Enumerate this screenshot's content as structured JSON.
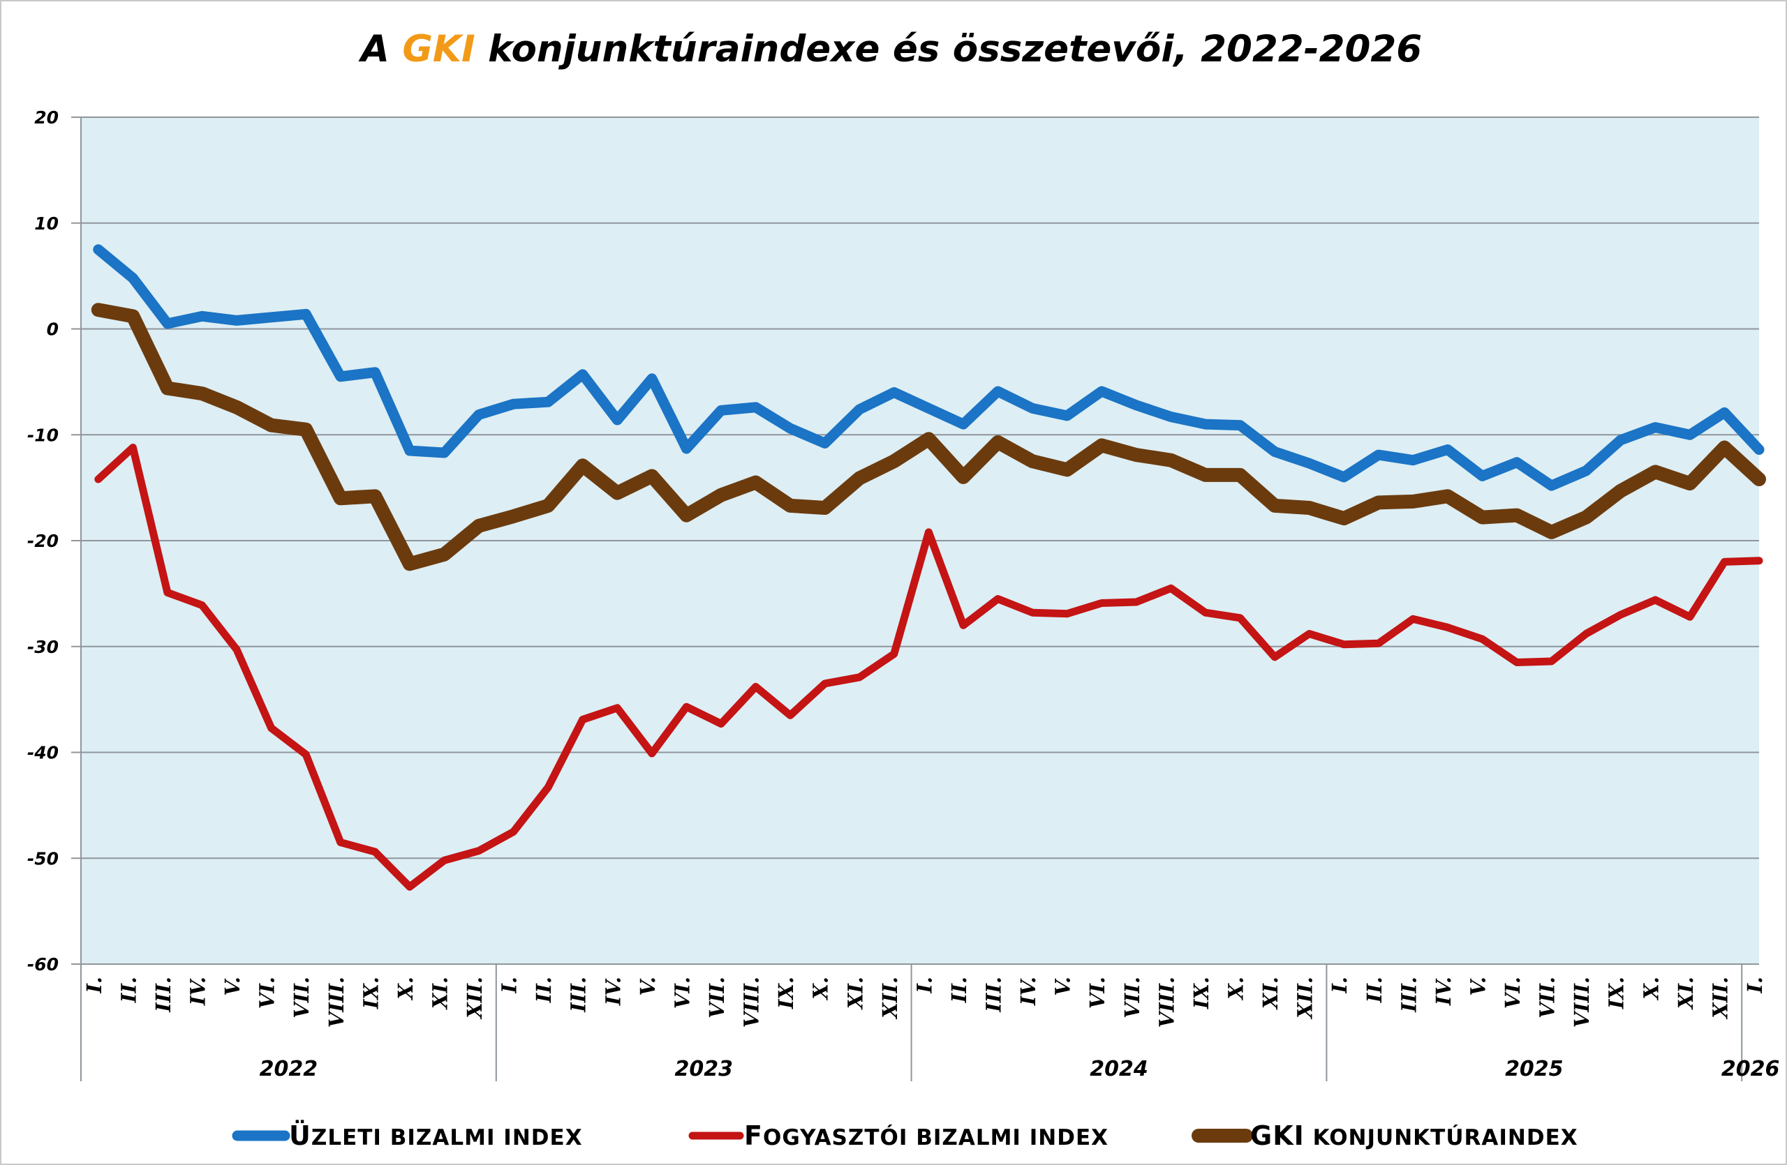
{
  "chart_data": {
    "type": "line",
    "title": {
      "prefix": "A ",
      "highlight": "GKI",
      "suffix": " konjunktúraindexe és összetevői, 2022-2026",
      "highlight_color": "#F29A17"
    },
    "ylim": [
      -60,
      20
    ],
    "yticks": [
      "20",
      "10",
      "0",
      "-10",
      "-20",
      "-30",
      "-40",
      "-50",
      "-60"
    ],
    "yticks_values": [
      20,
      10,
      0,
      -10,
      -20,
      -30,
      -40,
      -50,
      -60
    ],
    "grid": true,
    "plot_background": "#DDEEF4",
    "legend_position": "bottom",
    "months": [
      "I.",
      "II.",
      "III.",
      "IV.",
      "V.",
      "VI.",
      "VII.",
      "VIII.",
      "IX.",
      "X.",
      "XI.",
      "XII.",
      "I.",
      "II.",
      "III.",
      "IV.",
      "V.",
      "VI.",
      "VII.",
      "VIII.",
      "IX.",
      "X.",
      "XI.",
      "XII.",
      "I.",
      "II.",
      "III.",
      "IV.",
      "V.",
      "VI.",
      "VII.",
      "VIII.",
      "IX.",
      "X.",
      "XI.",
      "XII.",
      "I.",
      "II.",
      "III.",
      "IV.",
      "V.",
      "VI.",
      "VII.",
      "VIII.",
      "IX.",
      "X.",
      "XI.",
      "XII.",
      "I."
    ],
    "years": [
      {
        "label": "2022",
        "months": 12
      },
      {
        "label": "2023",
        "months": 12
      },
      {
        "label": "2024",
        "months": 12
      },
      {
        "label": "2025",
        "months": 12
      },
      {
        "label": "2026",
        "months": 1
      }
    ],
    "series": [
      {
        "name": "Üzleti bizalmi index",
        "color": "#1B74C5",
        "values": [
          7.5,
          4.8,
          0.5,
          1.2,
          0.8,
          1.1,
          1.4,
          -4.5,
          -4.1,
          -11.5,
          -11.7,
          -8.1,
          -7.1,
          -6.9,
          -4.3,
          -8.6,
          -4.7,
          -11.3,
          -7.7,
          -7.4,
          -9.4,
          -10.8,
          -7.6,
          -6.0,
          -7.5,
          -9.0,
          -5.9,
          -7.5,
          -8.2,
          -5.9,
          -7.2,
          -8.3,
          -9.0,
          -9.1,
          -11.6,
          -12.7,
          -14.0,
          -11.9,
          -12.4,
          -11.4,
          -13.9,
          -12.6,
          -14.8,
          -13.4,
          -10.5,
          -9.3,
          -10.0,
          -7.9,
          -11.4
        ]
      },
      {
        "name": "Fogyasztói bizalmi index",
        "color": "#C41414",
        "values": [
          -14.2,
          -11.2,
          -24.9,
          -26.1,
          -30.3,
          -37.7,
          -40.2,
          -48.5,
          -49.4,
          -52.7,
          -50.2,
          -49.3,
          -47.5,
          -43.3,
          -36.9,
          -35.8,
          -40.1,
          -35.7,
          -37.3,
          -33.8,
          -36.5,
          -33.5,
          -32.9,
          -30.7,
          -19.2,
          -28.0,
          -25.5,
          -26.8,
          -26.9,
          -25.9,
          -25.8,
          -24.5,
          -26.8,
          -27.3,
          -31.0,
          -28.8,
          -29.8,
          -29.7,
          -27.4,
          -28.2,
          -29.3,
          -31.5,
          -31.4,
          -28.8,
          -27.0,
          -25.6,
          -27.2,
          -22.0,
          -21.9
        ]
      },
      {
        "name": "GKI konjunktúraindex",
        "color": "#6B3B0E",
        "values": [
          1.8,
          1.2,
          -5.6,
          -6.1,
          -7.4,
          -9.1,
          -9.5,
          -16.0,
          -15.8,
          -22.2,
          -21.3,
          -18.6,
          -17.7,
          -16.7,
          -12.9,
          -15.5,
          -13.9,
          -17.6,
          -15.7,
          -14.5,
          -16.7,
          -16.9,
          -14.1,
          -12.5,
          -10.4,
          -14.0,
          -10.7,
          -12.5,
          -13.3,
          -11.0,
          -11.9,
          -12.4,
          -13.8,
          -13.8,
          -16.7,
          -16.9,
          -17.9,
          -16.4,
          -16.3,
          -15.8,
          -17.8,
          -17.6,
          -19.2,
          -17.8,
          -15.3,
          -13.5,
          -14.6,
          -11.2,
          -14.2
        ]
      }
    ],
    "legend": [
      {
        "cap": "Ü",
        "rest": "ZLETI BIZALMI INDEX"
      },
      {
        "cap": "F",
        "rest": "OGYASZTÓI BIZALMI INDEX"
      },
      {
        "cap": "GKI",
        "rest": " KONJUNKTÚRAINDEX"
      }
    ]
  }
}
